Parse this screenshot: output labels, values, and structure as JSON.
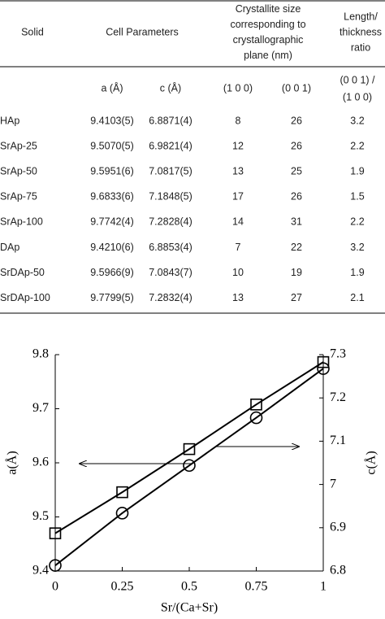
{
  "table": {
    "header": [
      [
        "Solid"
      ],
      [
        "Cell Parameters"
      ],
      [
        "Crystallite size",
        "corresponding to",
        "crystallographic",
        "plane (nm)"
      ],
      [
        "Length/",
        "thickness",
        "ratio"
      ]
    ],
    "subheader": [
      "a (Å)",
      "c (Å)",
      "(1 0 0)",
      "(0 0 1)",
      [
        "(0 0 1) /",
        "(1 0 0)"
      ]
    ],
    "rows": [
      [
        "HAp",
        "9.4103(5)",
        "6.8871(4)",
        8,
        26,
        3.2
      ],
      [
        "SrAp-25",
        "9.5070(5)",
        "6.9821(4)",
        12,
        26,
        2.2
      ],
      [
        "SrAp-50",
        "9.5951(6)",
        "7.0817(5)",
        13,
        25,
        1.9
      ],
      [
        "SrAp-75",
        "9.6833(6)",
        "7.1848(5)",
        17,
        26,
        1.5
      ],
      [
        "SrAp-100",
        "9.7742(4)",
        "7.2828(4)",
        14,
        31,
        2.2
      ],
      [
        "DAp",
        "9.4210(6)",
        "6.8853(4)",
        7,
        22,
        3.2
      ],
      [
        "SrDAp-50",
        "9.5966(9)",
        "7.0843(7)",
        10,
        19,
        1.9
      ],
      [
        "SrDAp-100",
        "9.7799(5)",
        "7.2832(4)",
        13,
        27,
        2.1
      ]
    ]
  },
  "chart_data": {
    "type": "line",
    "x_label": "Sr/(Ca+Sr)",
    "y_label": "a(Å)",
    "y2_label": "c(Å)",
    "x": [
      0,
      0.25,
      0.5,
      0.75,
      1
    ],
    "series": [
      {
        "name": "a",
        "marker": "circle",
        "color": "#000000",
        "values": [
          9.4103,
          9.507,
          9.5951,
          9.6833,
          9.7742
        ]
      },
      {
        "name": "c",
        "marker": "square",
        "color": "#000000",
        "axis": "y2",
        "values": [
          6.8871,
          6.9821,
          7.0817,
          7.1848,
          7.2828
        ]
      }
    ],
    "xlim": [
      0,
      1
    ],
    "xticks": [
      0,
      0.25,
      0.5,
      0.75,
      1
    ],
    "ylim": [
      9.4,
      9.8
    ],
    "yticks": [
      9.4,
      9.5,
      9.6,
      9.7,
      9.8
    ],
    "y2lim": [
      6.8,
      7.3
    ],
    "y2ticks": [
      6.8,
      6.9,
      7,
      7.1,
      7.2,
      7.3
    ]
  }
}
